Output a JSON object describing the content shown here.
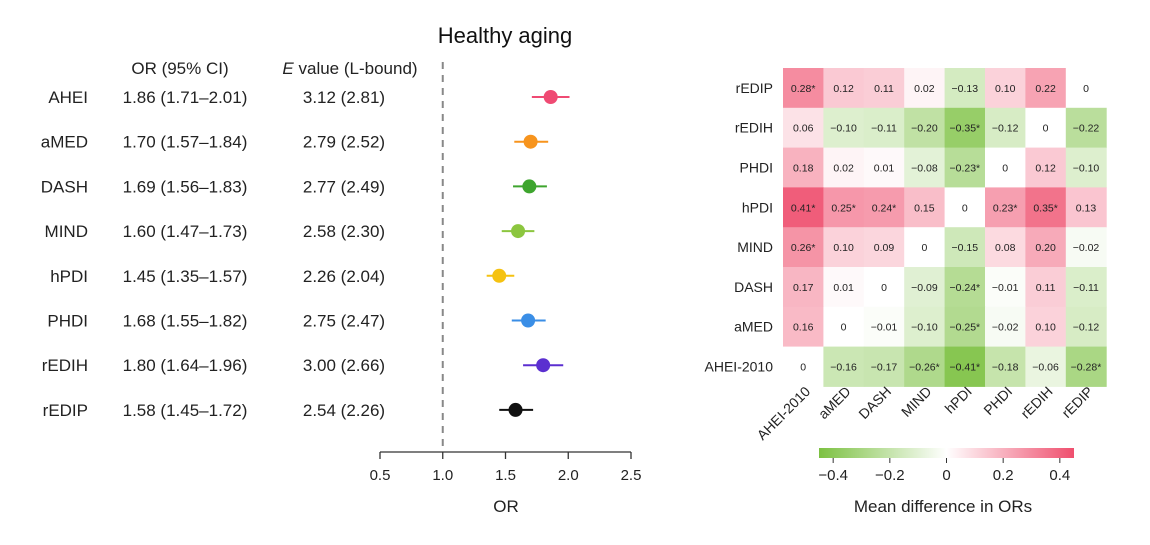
{
  "chart_data": [
    {
      "type": "forest",
      "title": "Healthy aging",
      "xlabel": "OR",
      "xlim": [
        0.5,
        2.5
      ],
      "xticks": [
        0.5,
        1.0,
        1.5,
        2.0,
        2.5
      ],
      "xtick_labels": [
        "0.5",
        "1.0",
        "1.5",
        "2.0",
        "2.5"
      ],
      "reference_line": 1.0,
      "col_headers": {
        "or": "OR (95% CI)",
        "evalue_italic": "E",
        "evalue_rest": " value (L-bound)"
      },
      "rows": [
        {
          "label": "AHEI",
          "or_text": "1.86 (1.71–2.01)",
          "e_text": "3.12 (2.81)",
          "or": 1.86,
          "lo": 1.71,
          "hi": 2.01,
          "color": "#ef4a73"
        },
        {
          "label": "aMED",
          "or_text": "1.70 (1.57–1.84)",
          "e_text": "2.79 (2.52)",
          "or": 1.7,
          "lo": 1.57,
          "hi": 1.84,
          "color": "#f7941d"
        },
        {
          "label": "DASH",
          "or_text": "1.69 (1.56–1.83)",
          "e_text": "2.77 (2.49)",
          "or": 1.69,
          "lo": 1.56,
          "hi": 1.83,
          "color": "#3ea52e"
        },
        {
          "label": "MIND",
          "or_text": "1.60 (1.47–1.73)",
          "e_text": "2.58 (2.30)",
          "or": 1.6,
          "lo": 1.47,
          "hi": 1.73,
          "color": "#8cc63f"
        },
        {
          "label": "hPDI",
          "or_text": "1.45 (1.35–1.57)",
          "e_text": "2.26 (2.04)",
          "or": 1.45,
          "lo": 1.35,
          "hi": 1.57,
          "color": "#f5c211"
        },
        {
          "label": "PHDI",
          "or_text": "1.68 (1.55–1.82)",
          "e_text": "2.75 (2.47)",
          "or": 1.68,
          "lo": 1.55,
          "hi": 1.82,
          "color": "#3a8ee6"
        },
        {
          "label": "rEDIH",
          "or_text": "1.80 (1.64–1.96)",
          "e_text": "3.00 (2.66)",
          "or": 1.8,
          "lo": 1.64,
          "hi": 1.96,
          "color": "#5b2fd0"
        },
        {
          "label": "rEDIP",
          "or_text": "1.58 (1.45–1.72)",
          "e_text": "2.54 (2.26)",
          "or": 1.58,
          "lo": 1.45,
          "hi": 1.72,
          "color": "#111111"
        }
      ]
    },
    {
      "type": "heatmap",
      "row_labels": [
        "rEDIP",
        "rEDIH",
        "PHDI",
        "hPDI",
        "MIND",
        "DASH",
        "aMED",
        "AHEI-2010"
      ],
      "col_labels": [
        "AHEI-2010",
        "aMED",
        "DASH",
        "MIND",
        "hPDI",
        "PHDI",
        "rEDIH",
        "rEDIP"
      ],
      "values": [
        [
          0.28,
          0.12,
          0.11,
          0.02,
          -0.13,
          0.1,
          0.22,
          0
        ],
        [
          0.06,
          -0.1,
          -0.11,
          -0.2,
          -0.35,
          -0.12,
          0,
          -0.22
        ],
        [
          0.18,
          0.02,
          0.01,
          -0.08,
          -0.23,
          0,
          0.12,
          -0.1
        ],
        [
          0.41,
          0.25,
          0.24,
          0.15,
          0,
          0.23,
          0.35,
          0.13
        ],
        [
          0.26,
          0.1,
          0.09,
          0,
          -0.15,
          0.08,
          0.2,
          -0.02
        ],
        [
          0.17,
          0.01,
          0,
          -0.09,
          -0.24,
          -0.01,
          0.11,
          -0.11
        ],
        [
          0.16,
          0,
          -0.01,
          -0.1,
          -0.25,
          -0.02,
          0.1,
          -0.12
        ],
        [
          0,
          -0.16,
          -0.17,
          -0.26,
          -0.41,
          -0.18,
          -0.06,
          -0.28
        ]
      ],
      "cell_labels": [
        [
          "0.28*",
          "0.12",
          "0.11",
          "0.02",
          "−0.13",
          "0.10",
          "0.22",
          "0"
        ],
        [
          "0.06",
          "−0.10",
          "−0.11",
          "−0.20",
          "−0.35*",
          "−0.12",
          "0",
          "−0.22"
        ],
        [
          "0.18",
          "0.02",
          "0.01",
          "−0.08",
          "−0.23*",
          "0",
          "0.12",
          "−0.10"
        ],
        [
          "0.41*",
          "0.25*",
          "0.24*",
          "0.15",
          "0",
          "0.23*",
          "0.35*",
          "0.13"
        ],
        [
          "0.26*",
          "0.10",
          "0.09",
          "0",
          "−0.15",
          "0.08",
          "0.20",
          "−0.02"
        ],
        [
          "0.17",
          "0.01",
          "0",
          "−0.09",
          "−0.24*",
          "−0.01",
          "0.11",
          "−0.11"
        ],
        [
          "0.16",
          "0",
          "−0.01",
          "−0.10",
          "−0.25*",
          "−0.02",
          "0.10",
          "−0.12"
        ],
        [
          "0",
          "−0.16",
          "−0.17",
          "−0.26*",
          "−0.41*",
          "−0.18",
          "−0.06",
          "−0.28*"
        ]
      ],
      "colorbar": {
        "label": "Mean difference in ORs",
        "range": [
          -0.45,
          0.45
        ],
        "ticks": [
          -0.4,
          -0.2,
          0,
          0.2,
          0.4
        ],
        "tick_labels": [
          "−0.4",
          "−0.2",
          "0",
          "0.2",
          "0.4"
        ],
        "low_color": "#7cc142",
        "mid_color": "#ffffff",
        "high_color": "#ef4f6e"
      }
    }
  ]
}
